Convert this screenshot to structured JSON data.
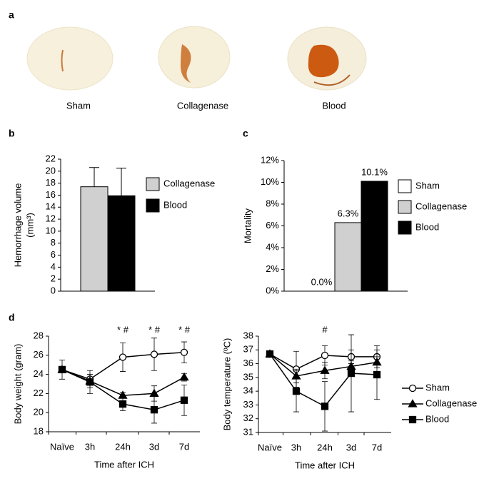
{
  "panel_labels": [
    "a",
    "b",
    "c",
    "d"
  ],
  "images": [
    "Sham",
    "Collagenase",
    "Blood"
  ],
  "chart_data": [
    {
      "type": "bar",
      "ylabel": [
        "Hemorrhage volume",
        "(mm³)"
      ],
      "ylim": [
        0,
        22
      ],
      "yticks": [
        0,
        2,
        4,
        6,
        8,
        10,
        12,
        14,
        16,
        18,
        20,
        22
      ],
      "legend": "right",
      "series": [
        {
          "name": "Collagenase",
          "color": "#d0d0d0",
          "values": [
            17.4
          ],
          "errors": [
            3.2
          ]
        },
        {
          "name": "Blood",
          "color": "#000000",
          "values": [
            15.9
          ],
          "errors": [
            4.6
          ]
        }
      ]
    },
    {
      "type": "bar",
      "ylabel": [
        "Mortality"
      ],
      "ylim": [
        0,
        12
      ],
      "yticks": [
        {
          "value": 0,
          "label": "0%"
        },
        {
          "value": 2,
          "label": "2%"
        },
        {
          "value": 4,
          "label": "4%"
        },
        {
          "value": 6,
          "label": "6%"
        },
        {
          "value": 8,
          "label": "8%"
        },
        {
          "value": 10,
          "label": "10%"
        },
        {
          "value": 12,
          "label": "12%"
        }
      ],
      "legend": "right",
      "series": [
        {
          "name": "Sham",
          "color": "#ffffff",
          "values": [
            0
          ],
          "value_labels": [
            "0.0%"
          ]
        },
        {
          "name": "Collagenase",
          "color": "#d0d0d0",
          "values": [
            6.3
          ],
          "value_labels": [
            "6.3%"
          ]
        },
        {
          "name": "Blood",
          "color": "#000000",
          "values": [
            10.1
          ],
          "value_labels": [
            "10.1%"
          ]
        }
      ]
    },
    {
      "type": "line",
      "ylabel": [
        "Body weight (gram)"
      ],
      "xlabel": "Time after ICH",
      "categories": [
        "Naïve",
        "3h",
        "24h",
        "3d",
        "7d"
      ],
      "ylim": [
        18,
        28
      ],
      "yticks": [
        18,
        20,
        22,
        24,
        26,
        28
      ],
      "annotations": [
        null,
        null,
        "* #",
        "* #",
        "* #"
      ],
      "series": [
        {
          "name": "Sham",
          "color": "#000000",
          "marker": "circle",
          "values": [
            24.5,
            23.5,
            25.8,
            26.1,
            26.3
          ],
          "errors": [
            0,
            0.5,
            1.5,
            1.7,
            1.1
          ]
        },
        {
          "name": "Collagenase",
          "color": "#000000",
          "marker": "triangle",
          "values": [
            24.5,
            23.3,
            21.8,
            22.0,
            23.7
          ],
          "errors": [
            0,
            0.7,
            0.3,
            0.8,
            0.4
          ]
        },
        {
          "name": "Blood",
          "color": "#000000",
          "marker": "square",
          "values": [
            24.5,
            23.2,
            20.9,
            20.3,
            21.3
          ],
          "errors": [
            1.0,
            1.2,
            0.7,
            1.4,
            1.6
          ]
        }
      ]
    },
    {
      "type": "line",
      "ylabel": [
        "Body temperature (ºC)"
      ],
      "xlabel": "Time after ICH",
      "categories": [
        "Naïve",
        "3h",
        "24h",
        "3d",
        "7d"
      ],
      "ylim": [
        31,
        38
      ],
      "yticks": [
        31,
        32,
        33,
        34,
        35,
        36,
        37,
        38
      ],
      "annotations": [
        null,
        null,
        "#",
        null,
        null
      ],
      "legend": "right",
      "series": [
        {
          "name": "Sham",
          "color": "#000000",
          "marker": "circle",
          "values": [
            36.7,
            35.6,
            36.6,
            36.5,
            36.5
          ],
          "errors": [
            0.2,
            1.3,
            0.7,
            0.5,
            0.8
          ]
        },
        {
          "name": "Collagenase",
          "color": "#000000",
          "marker": "triangle",
          "values": [
            36.7,
            35.1,
            35.5,
            35.8,
            36.1
          ],
          "errors": [
            0.2,
            0.5,
            0.6,
            0.4,
            0.4
          ]
        },
        {
          "name": "Blood",
          "color": "#000000",
          "marker": "square",
          "values": [
            36.7,
            34.0,
            32.9,
            35.3,
            35.2
          ],
          "errors": [
            0.2,
            1.5,
            1.8,
            2.8,
            1.8
          ]
        }
      ]
    }
  ]
}
